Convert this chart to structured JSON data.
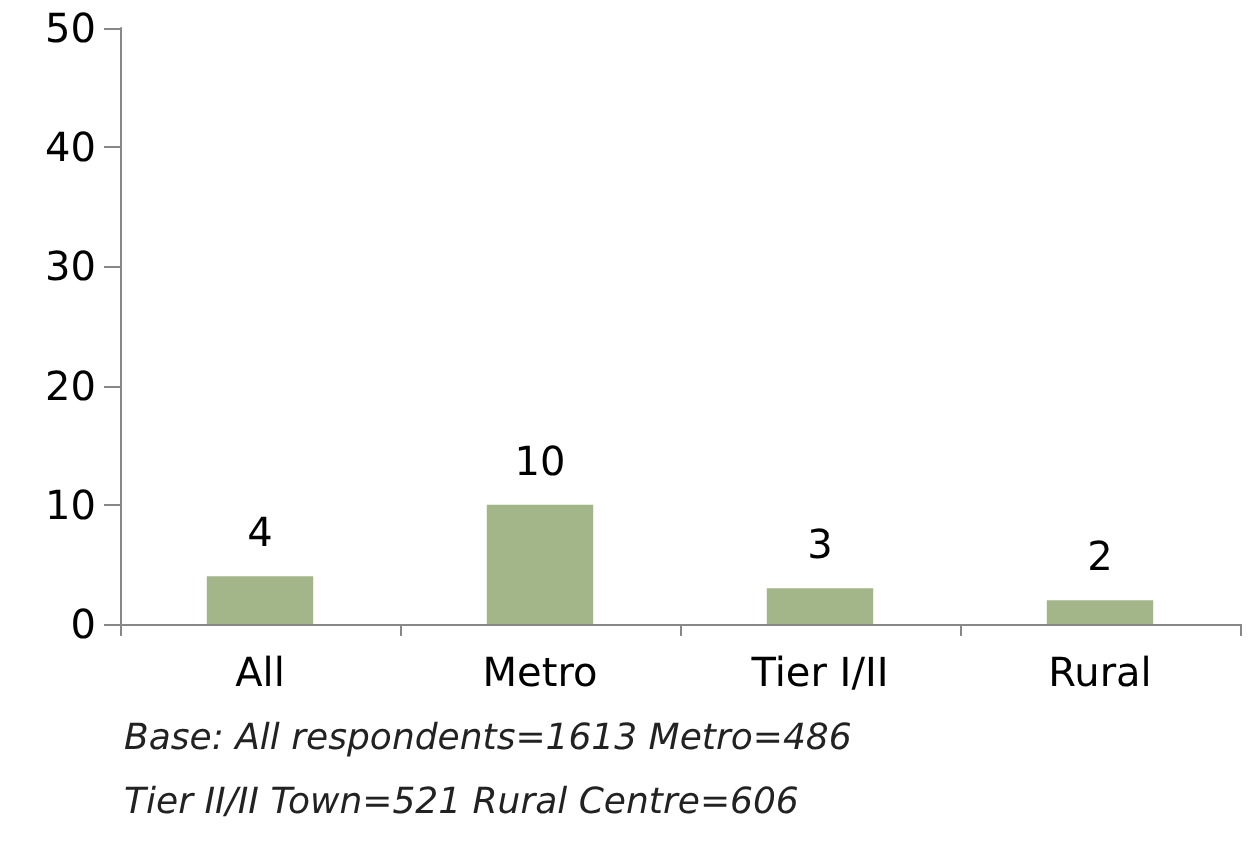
{
  "chart_data": {
    "type": "bar",
    "categories": [
      "All",
      "Metro",
      "Tier I/II",
      "Rural"
    ],
    "values": [
      4,
      10,
      3,
      2
    ],
    "color": "#a3b68a",
    "ylim": [
      0,
      50
    ],
    "yticks": [
      0,
      10,
      20,
      30,
      40,
      50
    ],
    "grid": false,
    "data_labels": true,
    "annotations": [
      "Base: All respondents=1613 Metro=486",
      "Tier II/II Town=521 Rural Centre=606"
    ]
  }
}
